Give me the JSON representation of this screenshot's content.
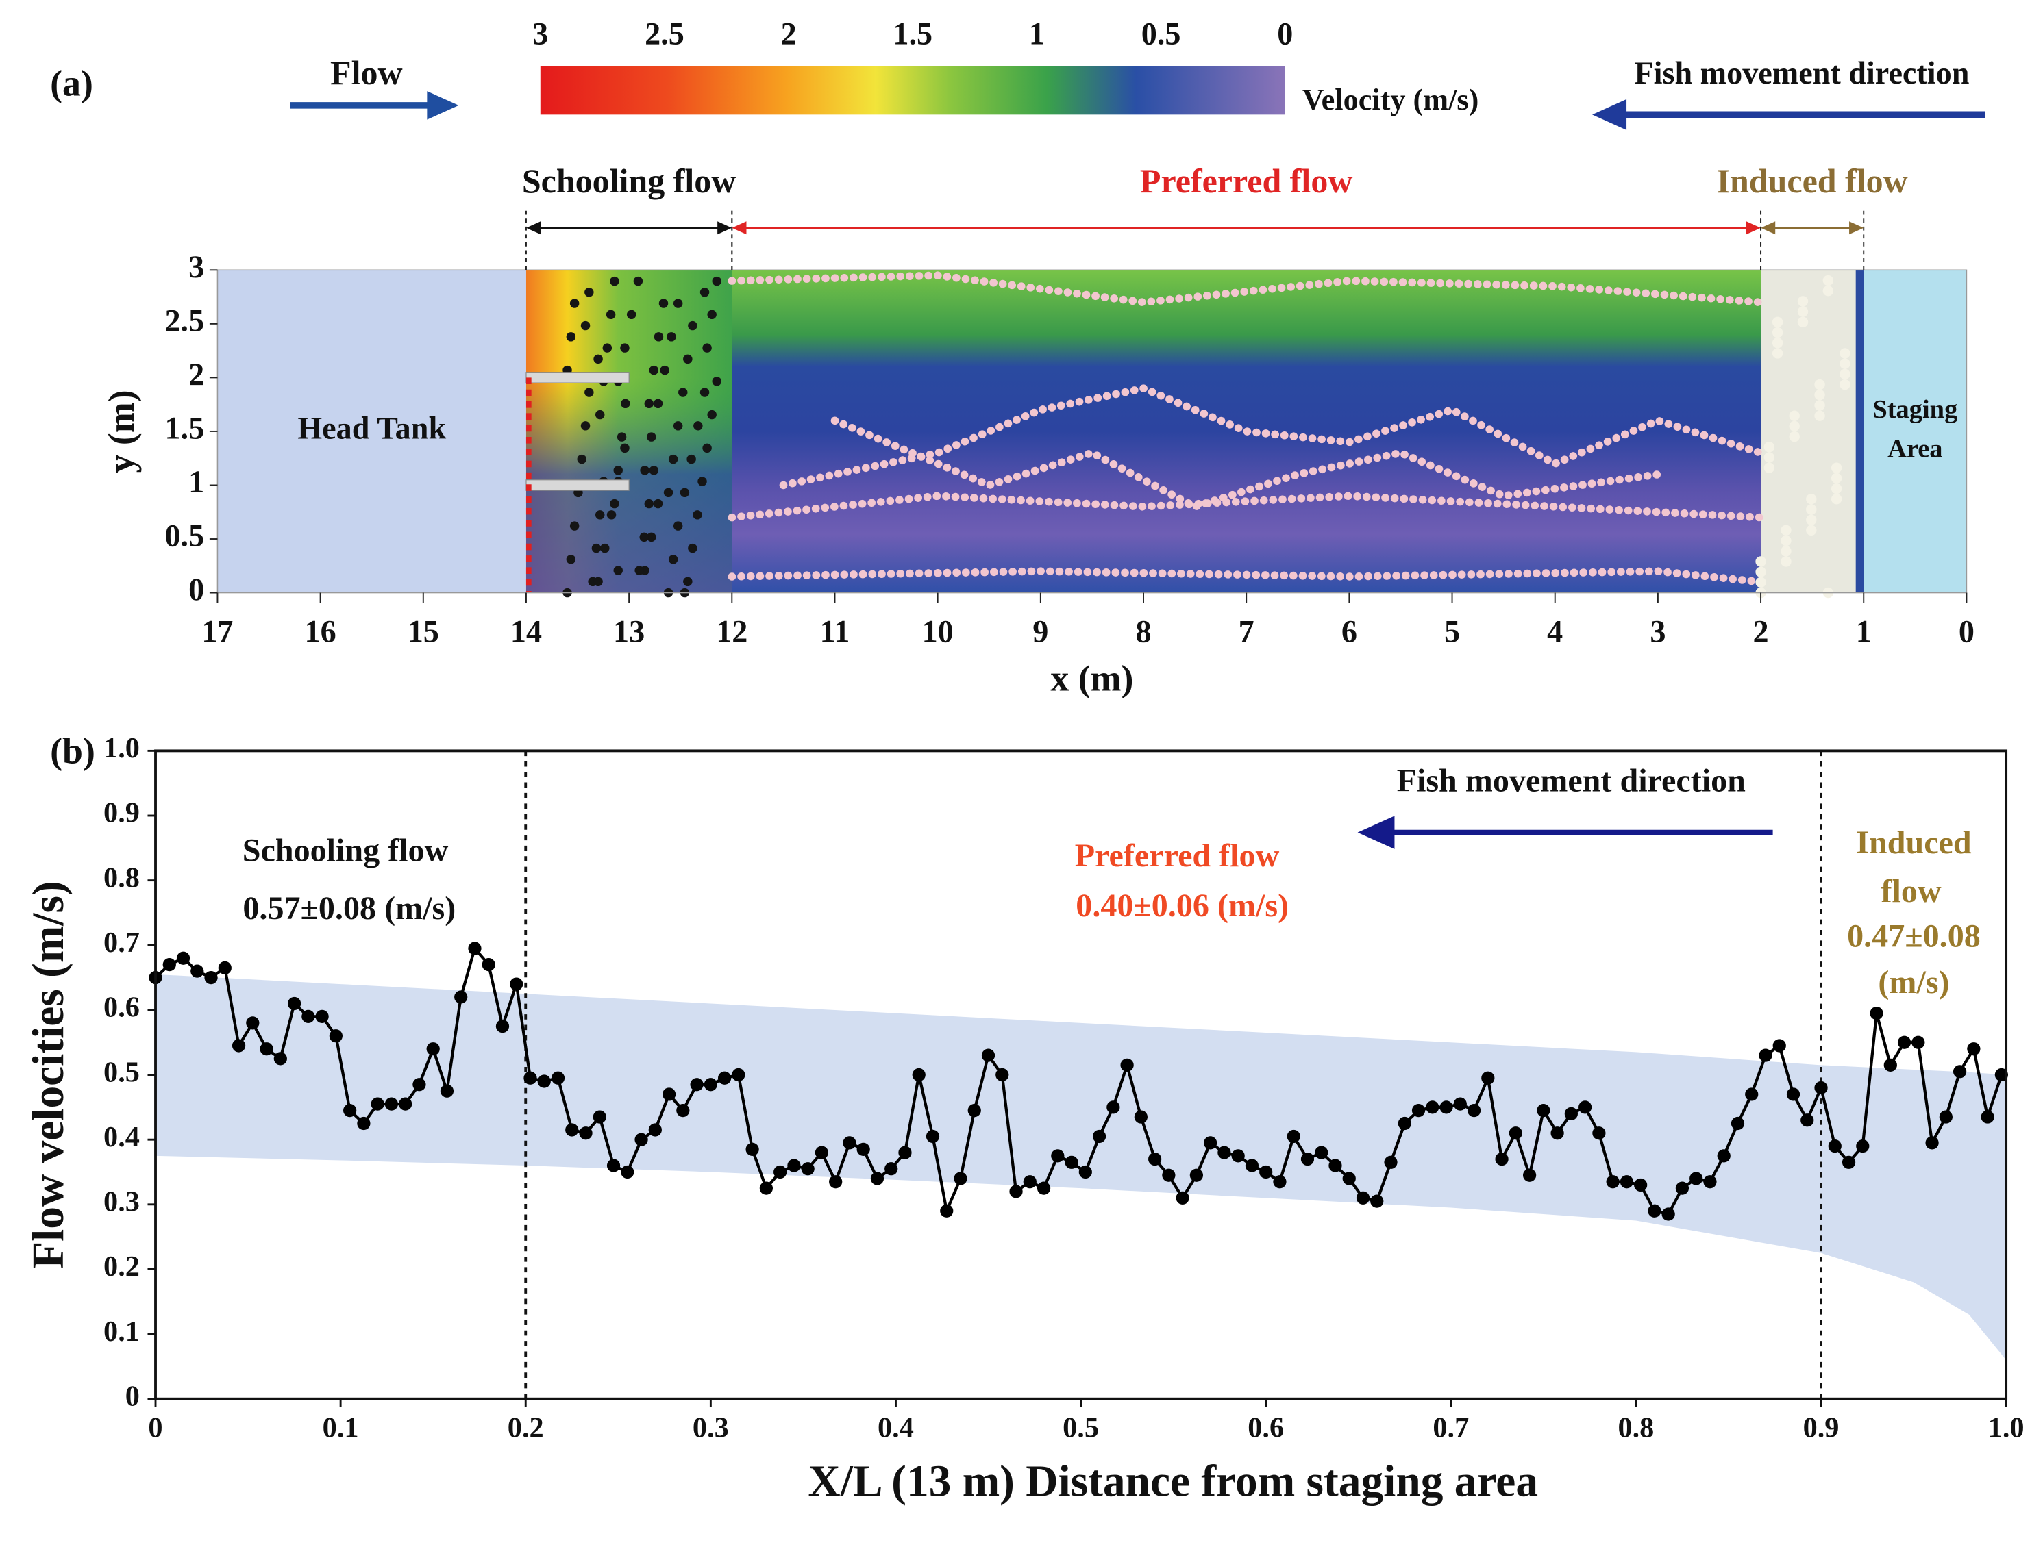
{
  "chart_data": [
    {
      "type": "field",
      "title": "(a)",
      "xlabel": "x (m)",
      "ylabel": "y (m)",
      "xlim": [
        17,
        0
      ],
      "xticks": [
        17,
        16,
        15,
        14,
        13,
        12,
        11,
        10,
        9,
        8,
        7,
        6,
        5,
        4,
        3,
        2,
        1,
        0
      ],
      "ylim": [
        0,
        3
      ],
      "yticks": [
        0,
        0.5,
        1,
        1.5,
        2,
        2.5,
        3
      ],
      "colorbar": {
        "label": "Velocity (m/s)",
        "lim": [
          3,
          0
        ],
        "ticks": [
          3,
          2.5,
          2,
          1.5,
          1,
          0.5,
          0
        ]
      },
      "zones": [
        {
          "name": "Schooling flow",
          "color": "#111111",
          "from": 14,
          "to": 12
        },
        {
          "name": "Preferred flow",
          "color": "#e02424",
          "from": 12,
          "to": 2
        },
        {
          "name": "Induced flow",
          "color": "#8b6d34",
          "from": 2,
          "to": 1
        }
      ],
      "regions": [
        {
          "name": [
            "Head Tank"
          ],
          "from": 17,
          "to": 14,
          "color": "#c6d3ee"
        },
        {
          "name": [
            "Staging",
            "Area"
          ],
          "from": 1,
          "to": 0,
          "color": "#b4e0ee"
        }
      ],
      "annotations": [
        "Flow",
        "Fish movement direction"
      ]
    },
    {
      "type": "line",
      "title": "(b)",
      "xlabel": "X/L (13 m) Distance from staging area",
      "ylabel": "Flow velocities (m/s)",
      "xlim": [
        0,
        1
      ],
      "xticks": [
        0,
        0.1,
        0.2,
        0.3,
        0.4,
        0.5,
        0.6,
        0.7,
        0.8,
        0.9,
        {
          "value": 1,
          "label": "1.0"
        }
      ],
      "ylim": [
        0,
        1
      ],
      "yticks": [
        0,
        0.1,
        0.2,
        0.3,
        0.4,
        0.5,
        0.6,
        0.7,
        0.8,
        0.9,
        {
          "value": 1,
          "label": "1.0"
        }
      ],
      "vlines": [
        0.2,
        0.9
      ],
      "band": {
        "color": "#d3def1",
        "x": [
          0,
          0.1,
          0.2,
          0.3,
          0.4,
          0.5,
          0.6,
          0.7,
          0.8,
          0.9,
          0.95,
          0.98,
          1
        ],
        "upper": [
          0.655,
          0.64,
          0.625,
          0.61,
          0.595,
          0.58,
          0.565,
          0.55,
          0.535,
          0.515,
          0.508,
          0.504,
          0.5
        ],
        "lower": [
          0.375,
          0.368,
          0.36,
          0.35,
          0.338,
          0.325,
          0.31,
          0.295,
          0.275,
          0.225,
          0.18,
          0.13,
          0.06
        ]
      },
      "color": "#000000",
      "x": [
        0,
        0.0075,
        0.015,
        0.0225,
        0.03,
        0.0375,
        0.045,
        0.0525,
        0.06,
        0.0675,
        0.075,
        0.0825,
        0.09,
        0.0975,
        0.105,
        0.1125,
        0.12,
        0.1275,
        0.135,
        0.1425,
        0.15,
        0.1575,
        0.165,
        0.1725,
        0.18,
        0.1875,
        0.195,
        0.2025,
        0.21,
        0.2175,
        0.225,
        0.2325,
        0.24,
        0.2475,
        0.255,
        0.2625,
        0.27,
        0.2775,
        0.285,
        0.2925,
        0.3,
        0.3075,
        0.315,
        0.3225,
        0.33,
        0.3375,
        0.345,
        0.3525,
        0.36,
        0.3675,
        0.375,
        0.3825,
        0.39,
        0.3975,
        0.405,
        0.4125,
        0.42,
        0.4275,
        0.435,
        0.4425,
        0.45,
        0.4575,
        0.465,
        0.4725,
        0.48,
        0.4875,
        0.495,
        0.5025,
        0.51,
        0.5175,
        0.525,
        0.5325,
        0.54,
        0.5475,
        0.555,
        0.5625,
        0.57,
        0.5775,
        0.585,
        0.5925,
        0.6,
        0.6075,
        0.615,
        0.6225,
        0.63,
        0.6375,
        0.645,
        0.6525,
        0.66,
        0.6675,
        0.675,
        0.6825,
        0.69,
        0.6975,
        0.705,
        0.7125,
        0.72,
        0.7275,
        0.735,
        0.7425,
        0.75,
        0.7575,
        0.765,
        0.7725,
        0.78,
        0.7875,
        0.795,
        0.8025,
        0.81,
        0.8175,
        0.825,
        0.8325,
        0.84,
        0.8475,
        0.855,
        0.8625,
        0.87,
        0.8775,
        0.885,
        0.8925,
        0.9,
        0.9075,
        0.915,
        0.9225,
        0.93,
        0.9375,
        0.945,
        0.9525,
        0.96,
        0.9675,
        0.975,
        0.9825,
        0.99,
        0.9975
      ],
      "values": [
        0.65,
        0.67,
        0.68,
        0.66,
        0.65,
        0.665,
        0.545,
        0.58,
        0.54,
        0.525,
        0.61,
        0.59,
        0.59,
        0.56,
        0.445,
        0.425,
        0.455,
        0.455,
        0.455,
        0.485,
        0.54,
        0.475,
        0.62,
        0.695,
        0.67,
        0.575,
        0.64,
        0.495,
        0.49,
        0.495,
        0.415,
        0.41,
        0.435,
        0.36,
        0.35,
        0.4,
        0.415,
        0.47,
        0.445,
        0.485,
        0.485,
        0.495,
        0.5,
        0.385,
        0.325,
        0.35,
        0.36,
        0.355,
        0.38,
        0.335,
        0.395,
        0.385,
        0.34,
        0.355,
        0.38,
        0.5,
        0.405,
        0.29,
        0.34,
        0.445,
        0.53,
        0.5,
        0.32,
        0.335,
        0.325,
        0.375,
        0.365,
        0.35,
        0.405,
        0.45,
        0.515,
        0.435,
        0.37,
        0.345,
        0.31,
        0.345,
        0.395,
        0.38,
        0.375,
        0.36,
        0.35,
        0.335,
        0.405,
        0.37,
        0.38,
        0.36,
        0.34,
        0.31,
        0.305,
        0.365,
        0.425,
        0.445,
        0.45,
        0.45,
        0.455,
        0.445,
        0.495,
        0.37,
        0.41,
        0.345,
        0.445,
        0.41,
        0.44,
        0.45,
        0.41,
        0.335,
        0.335,
        0.33,
        0.29,
        0.285,
        0.325,
        0.34,
        0.335,
        0.375,
        0.425,
        0.47,
        0.53,
        0.545,
        0.47,
        0.43,
        0.48,
        0.39,
        0.365,
        0.39,
        0.595,
        0.515,
        0.55,
        0.55,
        0.395,
        0.435,
        0.505,
        0.54,
        0.435,
        0.5
      ],
      "annotations": [
        "Schooling flow",
        "0.57±0.08 (m/s)",
        "Fish movement direction",
        "Preferred flow",
        "0.40±0.06 (m/s)",
        "Induced",
        "flow",
        "0.47±0.08",
        "(m/s)"
      ]
    }
  ]
}
